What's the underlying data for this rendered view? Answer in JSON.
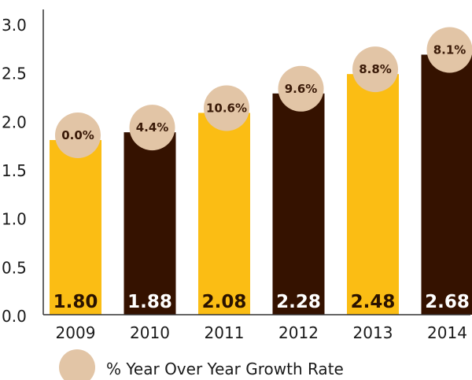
{
  "chart_data": {
    "type": "bar",
    "title": "",
    "xlabel": "",
    "ylabel": "",
    "ylim": [
      0,
      3.0
    ],
    "yticks": [
      "0.0",
      "0.5",
      "1.0",
      "1.5",
      "2.0",
      "2.5",
      "3.0"
    ],
    "categories": [
      "2009",
      "2010",
      "2011",
      "2012",
      "2013",
      "2014"
    ],
    "values": [
      1.8,
      1.88,
      2.08,
      2.28,
      2.48,
      2.68
    ],
    "value_labels": [
      "1.80",
      "1.88",
      "2.08",
      "2.28",
      "2.48",
      "2.68"
    ],
    "growth_rates": [
      "0.0%",
      "4.4%",
      "10.6%",
      "9.6%",
      "8.8%",
      "8.1%"
    ],
    "legend": {
      "position": "bottom-left",
      "label": "% Year Over Year Growth Rate"
    },
    "grid": false,
    "colors": {
      "bar_gold": "#fbbd14",
      "bar_dark": "#351200",
      "bubble": "#e2c5a6",
      "value_on_gold": "#2a1200",
      "value_on_dark": "#ffffff",
      "axis": "#333333"
    }
  }
}
